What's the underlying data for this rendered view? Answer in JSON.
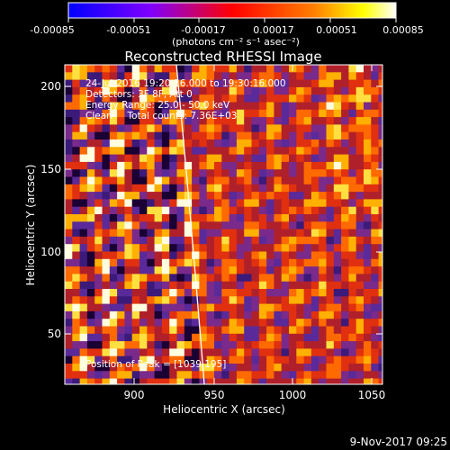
{
  "colorbar": {
    "tick_labels": [
      "-0.00085",
      "-0.00051",
      "-0.00017",
      "0.00017",
      "0.00051",
      "0.00085"
    ],
    "unit_label": "(photons cm⁻² s⁻¹ asec⁻²)",
    "colors": [
      "#0000ff",
      "#7f00ff",
      "#ff0000",
      "#ff7f00",
      "#ffff00",
      "#ffffff"
    ]
  },
  "image": {
    "title": "Reconstructed RHESSI Image",
    "info_lines": [
      "24-Jul-2016 19:20:16.000 to 19:30:16.000",
      "Detectors: 3F 8F, Att 0",
      "Energy Range: 25.0 - 50.0 keV",
      "Clean     Total counts: 7.36E+03"
    ],
    "peak_label": "Position of Peak = [1039,195]",
    "x_axis": {
      "label": "Heliocentric X (arcsec)",
      "ticks": [
        "900",
        "950",
        "1000",
        "1050"
      ],
      "range": [
        863,
        1050
      ]
    },
    "y_axis": {
      "label": "Heliocentric Y (arcsec)",
      "ticks": [
        "50",
        "100",
        "150",
        "200"
      ],
      "range": [
        20,
        213
      ]
    },
    "limb_color": "#ffffff",
    "palette": [
      "#1a0033",
      "#3b1a7a",
      "#5a2a9a",
      "#7a2a8a",
      "#b0202a",
      "#e03010",
      "#ff6a00",
      "#ffb000",
      "#ffe040",
      "#ffffe0"
    ]
  },
  "footer": {
    "timestamp": "9-Nov-2017 09:25"
  }
}
